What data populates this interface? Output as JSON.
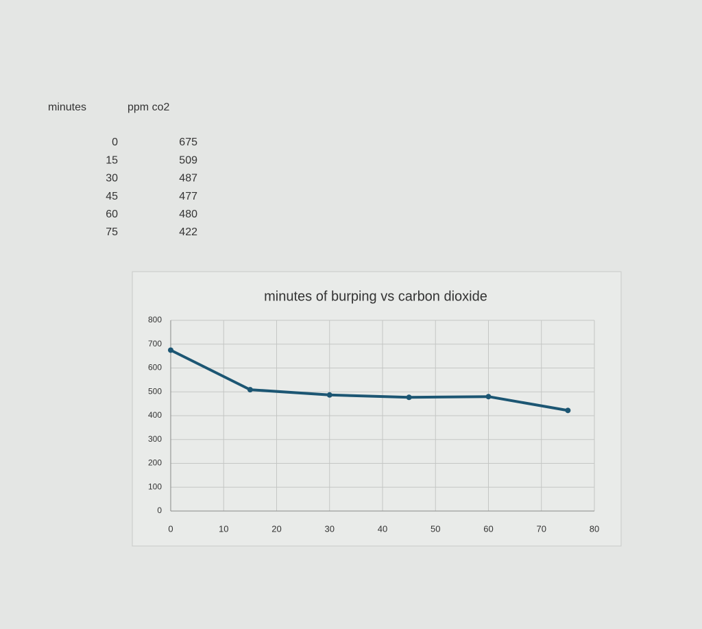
{
  "table": {
    "header": [
      "minutes",
      "ppm co2"
    ],
    "rows": [
      [
        0,
        675
      ],
      [
        15,
        509
      ],
      [
        30,
        487
      ],
      [
        45,
        477
      ],
      [
        60,
        480
      ],
      [
        75,
        422
      ]
    ]
  },
  "chart_data": {
    "type": "line",
    "title": "minutes  of burping vs carbon dioxide",
    "x": [
      0,
      15,
      30,
      45,
      60,
      75
    ],
    "series": [
      {
        "color": "#1c5673",
        "values": [
          675,
          509,
          487,
          477,
          480,
          422
        ]
      }
    ],
    "xlim": [
      0,
      80
    ],
    "xticks": [
      0,
      10,
      20,
      30,
      40,
      50,
      60,
      70,
      80
    ],
    "ylim": [
      0,
      800
    ],
    "yticks": [
      0,
      100,
      200,
      300,
      400,
      500,
      600,
      700,
      800
    ],
    "grid": true
  }
}
